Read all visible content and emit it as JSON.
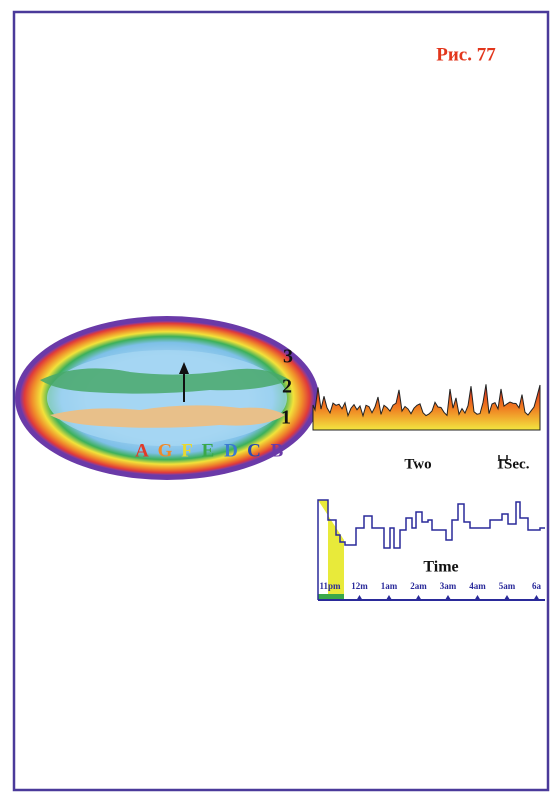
{
  "figure": {
    "label": "Рис. 77",
    "levels": [
      "3",
      "2",
      "1"
    ],
    "letters": [
      "A",
      "G",
      "F",
      "E",
      "D",
      "C",
      "B"
    ],
    "wave": {
      "left": "Two",
      "right": "1Sec."
    },
    "hypnogram": {
      "axis_title": "Time",
      "time_labels": [
        "11pm",
        "12m",
        "1am",
        "2am",
        "3am",
        "4am",
        "5am",
        "6a"
      ]
    }
  }
}
